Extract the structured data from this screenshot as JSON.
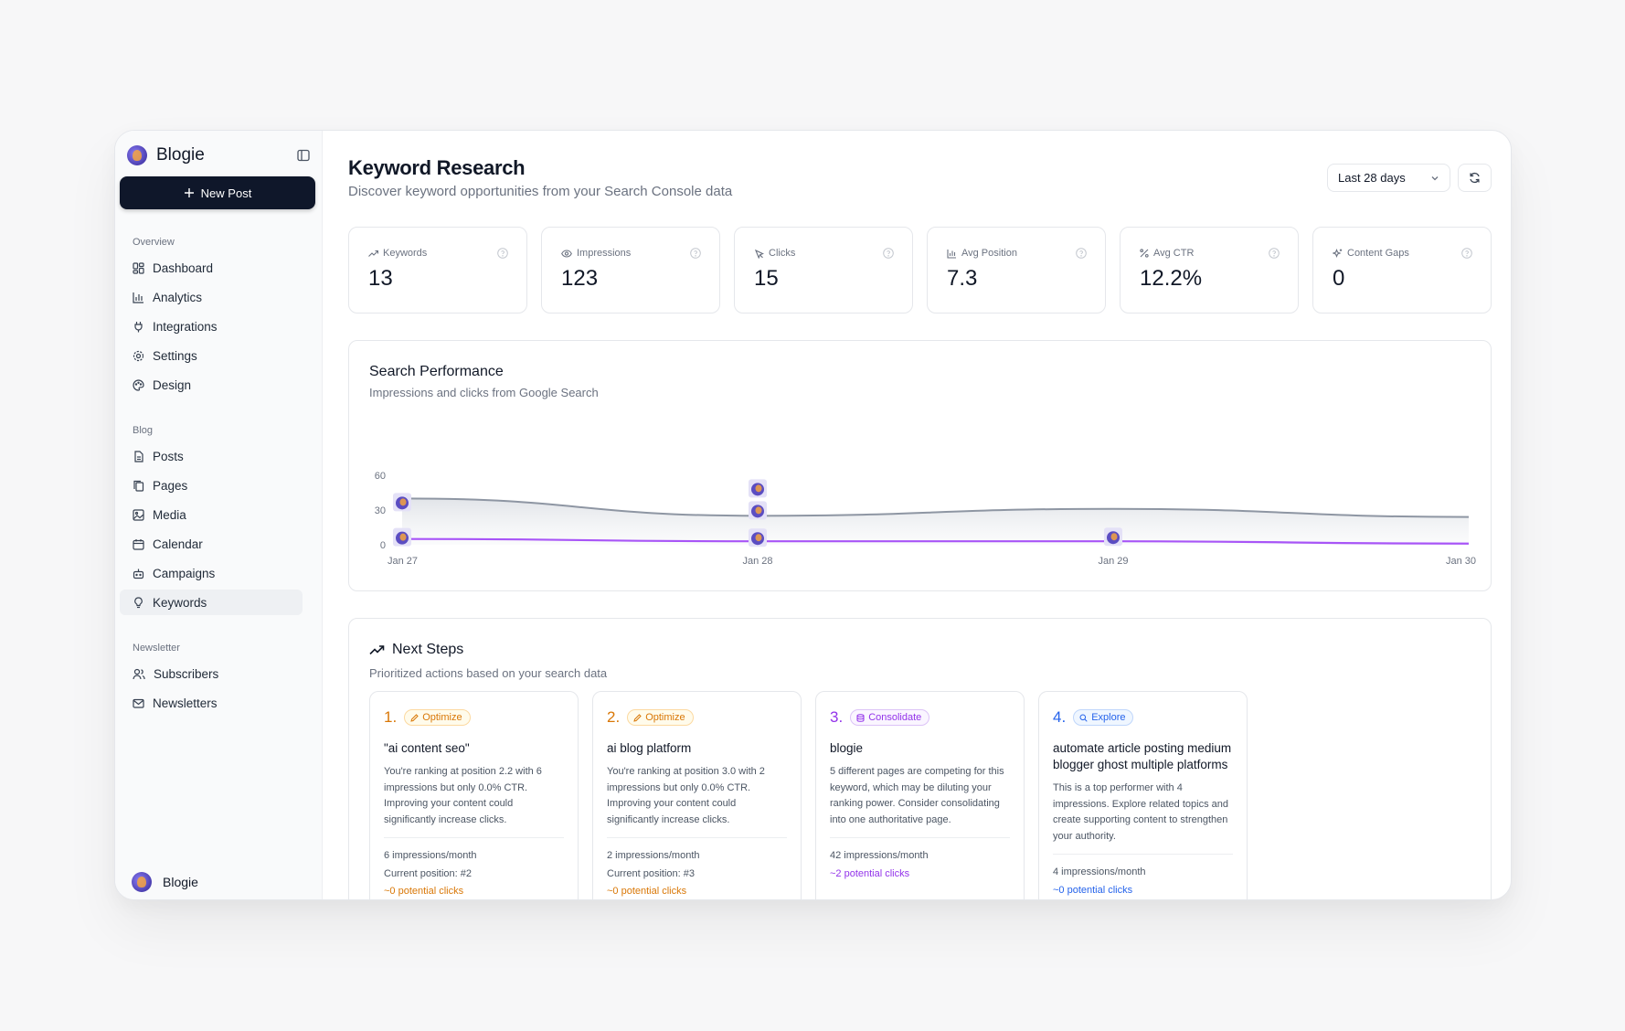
{
  "sidebar": {
    "brand": "Blogie",
    "new_post": "New Post",
    "sections": {
      "overview": "Overview",
      "blog": "Blog",
      "newsletter": "Newsletter"
    },
    "items": {
      "dashboard": "Dashboard",
      "analytics": "Analytics",
      "integrations": "Integrations",
      "settings": "Settings",
      "design": "Design",
      "posts": "Posts",
      "pages": "Pages",
      "media": "Media",
      "calendar": "Calendar",
      "campaigns": "Campaigns",
      "keywords": "Keywords",
      "subscribers": "Subscribers",
      "newsletters": "Newsletters"
    },
    "active": "keywords",
    "footer_name": "Blogie"
  },
  "header": {
    "title": "Keyword Research",
    "subtitle": "Discover keyword opportunities from your Search Console data",
    "range": "Last 28 days"
  },
  "stats": [
    {
      "label": "Keywords",
      "value": "13",
      "icon": "trend-icon"
    },
    {
      "label": "Impressions",
      "value": "123",
      "icon": "eye-icon"
    },
    {
      "label": "Clicks",
      "value": "15",
      "icon": "cursor-icon"
    },
    {
      "label": "Avg Position",
      "value": "7.3",
      "icon": "bar-chart-icon"
    },
    {
      "label": "Avg CTR",
      "value": "12.2%",
      "icon": "percent-icon"
    },
    {
      "label": "Content Gaps",
      "value": "0",
      "icon": "sparkles-icon"
    }
  ],
  "performance": {
    "title": "Search Performance",
    "subtitle": "Impressions and clicks from Google Search"
  },
  "chart_data": {
    "type": "area",
    "x": [
      "Jan 27",
      "Jan 28",
      "Jan 29",
      "Jan 30"
    ],
    "ylim": [
      0,
      60
    ],
    "yticks": [
      "60",
      "30",
      "0"
    ],
    "series": [
      {
        "values": [
          40,
          25,
          31,
          24
        ],
        "color": "#8e96a3"
      },
      {
        "values": [
          5,
          3,
          3,
          1
        ],
        "color": "#a855f7"
      }
    ],
    "grid": false
  },
  "next_steps": {
    "title": "Next Steps",
    "subtitle": "Prioritized actions based on your search data",
    "items": [
      {
        "num": "1.",
        "badge": "Optimize",
        "color": "#d97706",
        "bg": "#fffbeb",
        "border": "#fcd9a0",
        "title": "\"ai content seo\"",
        "desc": "You're ranking at position 2.2 with 6 impressions but only 0.0% CTR. Improving your content could significantly increase clicks.",
        "impressions": "6 impressions/month",
        "position": "Current position: #2",
        "potential": "~0 potential clicks"
      },
      {
        "num": "2.",
        "badge": "Optimize",
        "color": "#d97706",
        "bg": "#fffbeb",
        "border": "#fcd9a0",
        "title": "ai blog platform",
        "desc": "You're ranking at position 3.0 with 2 impressions but only 0.0% CTR. Improving your content could significantly increase clicks.",
        "impressions": "2 impressions/month",
        "position": "Current position: #3",
        "potential": "~0 potential clicks"
      },
      {
        "num": "3.",
        "badge": "Consolidate",
        "color": "#9333ea",
        "bg": "#faf5ff",
        "border": "#dcc3f7",
        "title": "blogie",
        "desc": "5 different pages are competing for this keyword, which may be diluting your ranking power. Consider consolidating into one authoritative page.",
        "impressions": "42 impressions/month",
        "position": "",
        "potential": "~2 potential clicks"
      },
      {
        "num": "4.",
        "badge": "Explore",
        "color": "#2563eb",
        "bg": "#eff6ff",
        "border": "#bfd6fb",
        "title": "automate article posting medium blogger ghost multiple platforms",
        "desc": "This is a top performer with 4 impressions. Explore related topics and create supporting content to strengthen your authority.",
        "impressions": "4 impressions/month",
        "position": "",
        "potential": "~0 potential clicks"
      }
    ]
  }
}
